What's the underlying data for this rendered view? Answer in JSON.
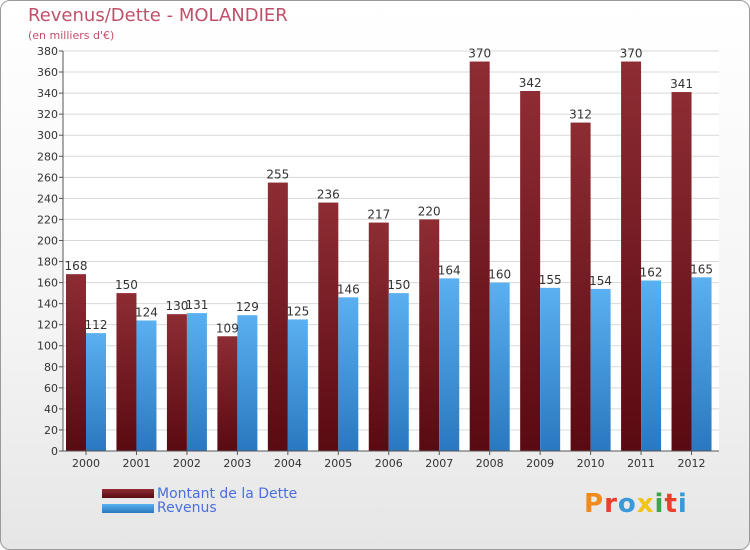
{
  "header": {
    "title": "Revenus/Dette - MOLANDIER",
    "subtitle": "(en milliers d'€)"
  },
  "legend": {
    "debt_label": "Montant de la Dette",
    "revenue_label": "Revenus"
  },
  "logo": {
    "text": "Proxiti",
    "colors": [
      "#f08a1c",
      "#e8402a",
      "#3a9ad8",
      "#f2c418",
      "#3aa84a",
      "#e8402a",
      "#3a9ad8"
    ]
  },
  "colors": {
    "debt": "#7a1c22",
    "debt_light": "#9a3a3e",
    "revenue": "#4aa0e4",
    "revenue_dark": "#2f84cc",
    "title": "#c0506a",
    "legend_text": "#4a6ee0"
  },
  "chart_data": {
    "type": "bar",
    "categories": [
      "2000",
      "2001",
      "2002",
      "2003",
      "2004",
      "2005",
      "2006",
      "2007",
      "2008",
      "2009",
      "2010",
      "2011",
      "2012"
    ],
    "series": [
      {
        "name": "Montant de la Dette",
        "values": [
          168,
          150,
          130,
          109,
          255,
          236,
          217,
          220,
          370,
          342,
          312,
          370,
          341
        ]
      },
      {
        "name": "Revenus",
        "values": [
          112,
          124,
          131,
          129,
          125,
          146,
          150,
          164,
          160,
          155,
          154,
          162,
          165
        ]
      }
    ],
    "ylim": [
      0,
      380
    ],
    "yticks": [
      0,
      20,
      40,
      60,
      80,
      100,
      120,
      140,
      160,
      180,
      200,
      220,
      240,
      260,
      280,
      300,
      320,
      340,
      360,
      380
    ],
    "grid": true,
    "legend_position": "bottom-left"
  }
}
